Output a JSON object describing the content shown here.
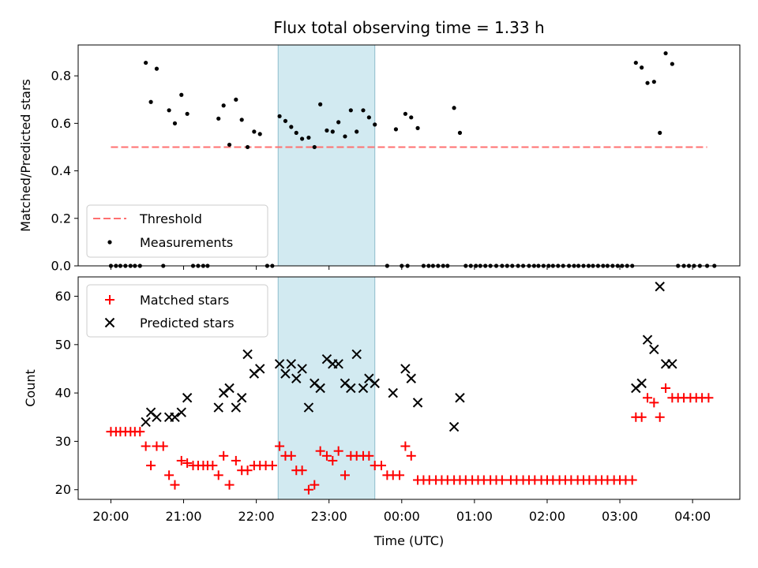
{
  "title": "Flux total observing time = 1.33 h",
  "colors": {
    "threshold": "#ff7070",
    "measurement": "#000000",
    "matched": "#ff0000",
    "predicted": "#000000",
    "shade": "#add8e6"
  },
  "chart_data": [
    {
      "type": "scatter",
      "ylabel": "Matched/Predicted stars",
      "ylim": [
        0,
        0.93
      ],
      "yticks": [
        0.0,
        0.2,
        0.4,
        0.6,
        0.8
      ],
      "ytick_labels": [
        "0.0",
        "0.2",
        "0.4",
        "0.6",
        "0.8"
      ],
      "xlim": [
        19.55,
        28.65
      ],
      "xticks": [
        20,
        21,
        22,
        23,
        24,
        25,
        26,
        27,
        28
      ],
      "shaded_span": [
        22.3,
        23.63
      ],
      "threshold": {
        "name": "Threshold",
        "value": 0.5,
        "x_range": [
          20.0,
          28.2
        ]
      },
      "legend": {
        "position": "lower left",
        "entries": [
          "Threshold",
          "Measurements"
        ]
      },
      "series": [
        {
          "name": "Measurements",
          "points": [
            [
              20.0,
              0
            ],
            [
              20.07,
              0
            ],
            [
              20.13,
              0
            ],
            [
              20.2,
              0
            ],
            [
              20.27,
              0
            ],
            [
              20.33,
              0
            ],
            [
              20.4,
              0
            ],
            [
              20.48,
              0.855
            ],
            [
              20.55,
              0.69
            ],
            [
              20.63,
              0.83
            ],
            [
              20.72,
              0
            ],
            [
              20.8,
              0.655
            ],
            [
              20.88,
              0.6
            ],
            [
              20.97,
              0.72
            ],
            [
              21.05,
              0.64
            ],
            [
              21.13,
              0
            ],
            [
              21.2,
              0
            ],
            [
              21.27,
              0
            ],
            [
              21.33,
              0
            ],
            [
              21.48,
              0.62
            ],
            [
              21.55,
              0.675
            ],
            [
              21.63,
              0.51
            ],
            [
              21.72,
              0.7
            ],
            [
              21.8,
              0.615
            ],
            [
              21.88,
              0.5
            ],
            [
              21.97,
              0.565
            ],
            [
              22.05,
              0.555
            ],
            [
              22.15,
              0
            ],
            [
              22.22,
              0
            ],
            [
              22.32,
              0.63
            ],
            [
              22.4,
              0.61
            ],
            [
              22.48,
              0.585
            ],
            [
              22.55,
              0.56
            ],
            [
              22.63,
              0.535
            ],
            [
              22.72,
              0.54
            ],
            [
              22.8,
              0.5
            ],
            [
              22.88,
              0.68
            ],
            [
              22.97,
              0.57
            ],
            [
              23.05,
              0.565
            ],
            [
              23.13,
              0.605
            ],
            [
              23.22,
              0.545
            ],
            [
              23.3,
              0.655
            ],
            [
              23.38,
              0.565
            ],
            [
              23.47,
              0.655
            ],
            [
              23.55,
              0.625
            ],
            [
              23.63,
              0.595
            ],
            [
              23.8,
              0
            ],
            [
              23.92,
              0.575
            ],
            [
              24.0,
              0
            ],
            [
              24.08,
              0
            ],
            [
              24.05,
              0.64
            ],
            [
              24.13,
              0.625
            ],
            [
              24.22,
              0.58
            ],
            [
              24.3,
              0
            ],
            [
              24.37,
              0
            ],
            [
              24.43,
              0
            ],
            [
              24.5,
              0
            ],
            [
              24.57,
              0
            ],
            [
              24.63,
              0
            ],
            [
              24.72,
              0.665
            ],
            [
              24.8,
              0.56
            ],
            [
              24.88,
              0
            ],
            [
              24.95,
              0
            ],
            [
              25.02,
              0
            ],
            [
              25.08,
              0
            ],
            [
              25.15,
              0
            ],
            [
              25.22,
              0
            ],
            [
              25.3,
              0
            ],
            [
              25.38,
              0
            ],
            [
              25.45,
              0
            ],
            [
              25.52,
              0
            ],
            [
              25.6,
              0
            ],
            [
              25.67,
              0
            ],
            [
              25.75,
              0
            ],
            [
              25.82,
              0
            ],
            [
              25.88,
              0
            ],
            [
              25.95,
              0
            ],
            [
              26.02,
              0
            ],
            [
              26.08,
              0
            ],
            [
              26.15,
              0
            ],
            [
              26.22,
              0
            ],
            [
              26.3,
              0
            ],
            [
              26.37,
              0
            ],
            [
              26.43,
              0
            ],
            [
              26.5,
              0
            ],
            [
              26.57,
              0
            ],
            [
              26.63,
              0
            ],
            [
              26.7,
              0
            ],
            [
              26.77,
              0
            ],
            [
              26.83,
              0
            ],
            [
              26.9,
              0
            ],
            [
              26.97,
              0
            ],
            [
              27.03,
              0
            ],
            [
              27.1,
              0
            ],
            [
              27.17,
              0
            ],
            [
              27.22,
              0.855
            ],
            [
              27.3,
              0.835
            ],
            [
              27.38,
              0.77
            ],
            [
              27.47,
              0.775
            ],
            [
              27.55,
              0.56
            ],
            [
              27.63,
              0.895
            ],
            [
              27.72,
              0.85
            ],
            [
              27.8,
              0
            ],
            [
              27.88,
              0
            ],
            [
              27.95,
              0
            ],
            [
              28.02,
              0
            ],
            [
              28.1,
              0
            ],
            [
              28.2,
              0
            ],
            [
              28.3,
              0
            ]
          ]
        }
      ]
    },
    {
      "type": "scatter",
      "xlabel": "Time (UTC)",
      "ylabel": "Count",
      "ylim": [
        18,
        64
      ],
      "yticks": [
        20,
        30,
        40,
        50,
        60
      ],
      "ytick_labels": [
        "20",
        "30",
        "40",
        "50",
        "60"
      ],
      "xlim": [
        19.55,
        28.65
      ],
      "xticks": [
        20,
        21,
        22,
        23,
        24,
        25,
        26,
        27,
        28
      ],
      "xtick_labels": [
        "20:00",
        "21:00",
        "22:00",
        "23:00",
        "00:00",
        "01:00",
        "02:00",
        "03:00",
        "04:00"
      ],
      "shaded_span": [
        22.3,
        23.63
      ],
      "legend": {
        "position": "upper left",
        "entries": [
          "Matched stars",
          "Predicted stars"
        ]
      },
      "series": [
        {
          "name": "Matched stars",
          "marker": "+",
          "points": [
            [
              20.0,
              32
            ],
            [
              20.07,
              32
            ],
            [
              20.13,
              32
            ],
            [
              20.2,
              32
            ],
            [
              20.27,
              32
            ],
            [
              20.33,
              32
            ],
            [
              20.4,
              32
            ],
            [
              20.48,
              29
            ],
            [
              20.55,
              25
            ],
            [
              20.63,
              29
            ],
            [
              20.72,
              29
            ],
            [
              20.8,
              23
            ],
            [
              20.88,
              21
            ],
            [
              20.97,
              26
            ],
            [
              21.05,
              25.5
            ],
            [
              21.13,
              25
            ],
            [
              21.2,
              25
            ],
            [
              21.27,
              25
            ],
            [
              21.33,
              25
            ],
            [
              21.4,
              25
            ],
            [
              21.48,
              23
            ],
            [
              21.55,
              27
            ],
            [
              21.63,
              21
            ],
            [
              21.72,
              26
            ],
            [
              21.8,
              24
            ],
            [
              21.88,
              24
            ],
            [
              21.97,
              25
            ],
            [
              22.05,
              25
            ],
            [
              22.13,
              25
            ],
            [
              22.22,
              25
            ],
            [
              22.32,
              29
            ],
            [
              22.4,
              27
            ],
            [
              22.48,
              27
            ],
            [
              22.55,
              24
            ],
            [
              22.63,
              24
            ],
            [
              22.72,
              20
            ],
            [
              22.8,
              21
            ],
            [
              22.88,
              28
            ],
            [
              22.97,
              27
            ],
            [
              23.05,
              26
            ],
            [
              23.13,
              28
            ],
            [
              23.22,
              23
            ],
            [
              23.3,
              27
            ],
            [
              23.38,
              27
            ],
            [
              23.47,
              27
            ],
            [
              23.55,
              27
            ],
            [
              23.63,
              25
            ],
            [
              23.72,
              25
            ],
            [
              23.8,
              23
            ],
            [
              23.88,
              23
            ],
            [
              23.97,
              23
            ],
            [
              24.05,
              29
            ],
            [
              24.13,
              27
            ],
            [
              24.22,
              22
            ],
            [
              24.3,
              22
            ],
            [
              24.38,
              22
            ],
            [
              24.47,
              22
            ],
            [
              24.55,
              22
            ],
            [
              24.63,
              22
            ],
            [
              24.72,
              22
            ],
            [
              24.8,
              22
            ],
            [
              24.88,
              22
            ],
            [
              24.97,
              22
            ],
            [
              25.05,
              22
            ],
            [
              25.13,
              22
            ],
            [
              25.22,
              22
            ],
            [
              25.3,
              22
            ],
            [
              25.38,
              22
            ],
            [
              25.5,
              22
            ],
            [
              25.58,
              22
            ],
            [
              25.67,
              22
            ],
            [
              25.75,
              22
            ],
            [
              25.83,
              22
            ],
            [
              25.92,
              22
            ],
            [
              26.0,
              22
            ],
            [
              26.08,
              22
            ],
            [
              26.17,
              22
            ],
            [
              26.25,
              22
            ],
            [
              26.33,
              22
            ],
            [
              26.42,
              22
            ],
            [
              26.5,
              22
            ],
            [
              26.58,
              22
            ],
            [
              26.67,
              22
            ],
            [
              26.75,
              22
            ],
            [
              26.83,
              22
            ],
            [
              26.92,
              22
            ],
            [
              27.0,
              22
            ],
            [
              27.08,
              22
            ],
            [
              27.17,
              22
            ],
            [
              27.22,
              35
            ],
            [
              27.3,
              35
            ],
            [
              27.38,
              39
            ],
            [
              27.47,
              38
            ],
            [
              27.55,
              35
            ],
            [
              27.63,
              41
            ],
            [
              27.72,
              39
            ],
            [
              27.8,
              39
            ],
            [
              27.88,
              39
            ],
            [
              27.97,
              39
            ],
            [
              28.05,
              39
            ],
            [
              28.13,
              39
            ],
            [
              28.22,
              39
            ]
          ]
        },
        {
          "name": "Predicted stars",
          "marker": "x",
          "points": [
            [
              20.48,
              34
            ],
            [
              20.55,
              36
            ],
            [
              20.63,
              35
            ],
            [
              20.8,
              35
            ],
            [
              20.88,
              35
            ],
            [
              20.97,
              36
            ],
            [
              21.05,
              39
            ],
            [
              21.48,
              37
            ],
            [
              21.55,
              40
            ],
            [
              21.63,
              41
            ],
            [
              21.72,
              37
            ],
            [
              21.8,
              39
            ],
            [
              21.88,
              48
            ],
            [
              21.97,
              44
            ],
            [
              22.05,
              45
            ],
            [
              22.32,
              46
            ],
            [
              22.4,
              44
            ],
            [
              22.48,
              46
            ],
            [
              22.55,
              43
            ],
            [
              22.63,
              45
            ],
            [
              22.72,
              37
            ],
            [
              22.8,
              42
            ],
            [
              22.88,
              41
            ],
            [
              22.97,
              47
            ],
            [
              23.05,
              46
            ],
            [
              23.13,
              46
            ],
            [
              23.22,
              42
            ],
            [
              23.3,
              41
            ],
            [
              23.38,
              48
            ],
            [
              23.47,
              41
            ],
            [
              23.55,
              43
            ],
            [
              23.63,
              42
            ],
            [
              23.88,
              40
            ],
            [
              24.05,
              45
            ],
            [
              24.13,
              43
            ],
            [
              24.22,
              38
            ],
            [
              24.72,
              33
            ],
            [
              24.8,
              39
            ],
            [
              27.22,
              41
            ],
            [
              27.3,
              42
            ],
            [
              27.38,
              51
            ],
            [
              27.47,
              49
            ],
            [
              27.55,
              62
            ],
            [
              27.63,
              46
            ],
            [
              27.72,
              46
            ]
          ]
        }
      ]
    }
  ]
}
